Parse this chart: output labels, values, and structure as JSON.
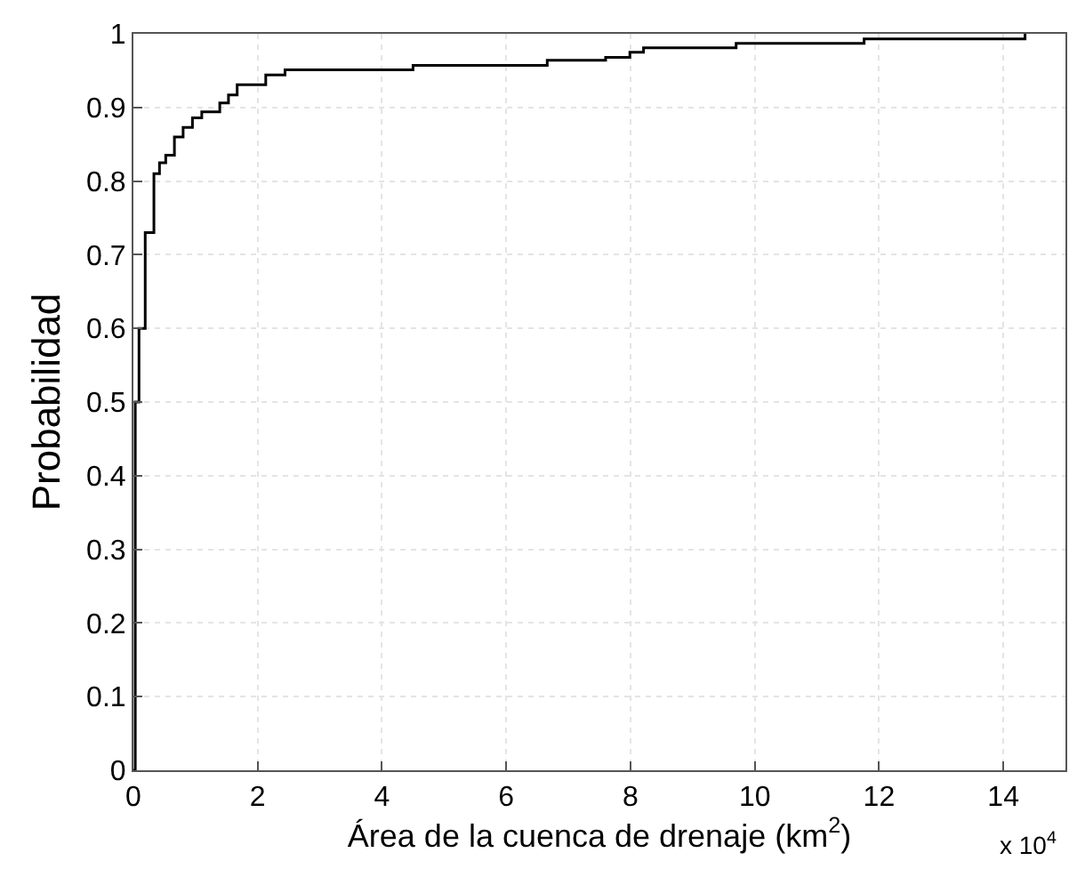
{
  "chart_data": {
    "type": "step",
    "xlabel": "Área de la cuenca de drenaje (km$^{2}$)",
    "ylabel": "Probabilidad",
    "annotations": [
      "x 10$^{4}$"
    ],
    "series": [
      {
        "color": "#000000",
        "x": [
          0,
          0.03,
          0.09,
          0.19,
          0.33,
          0.42,
          0.52,
          0.66,
          0.8,
          0.95,
          1.1,
          1.39,
          1.53,
          1.67,
          2.13,
          2.44,
          4.5,
          6.66,
          7.6,
          7.99,
          8.21,
          9.7,
          11.76,
          14.35
        ],
        "values": [
          0,
          0.5,
          0.6,
          0.73,
          0.81,
          0.825,
          0.835,
          0.86,
          0.873,
          0.886,
          0.894,
          0.906,
          0.917,
          0.931,
          0.944,
          0.951,
          0.957,
          0.964,
          0.968,
          0.975,
          0.981,
          0.987,
          0.993,
          1.0
        ]
      }
    ],
    "xlim": [
      0,
      15
    ],
    "xticks": [
      0,
      2,
      4,
      6,
      8,
      10,
      12,
      14
    ],
    "ylim": [
      0,
      1
    ],
    "yticks": [
      0,
      0.1,
      0.2,
      0.3,
      0.4,
      0.5,
      0.6,
      0.7,
      0.8,
      0.9,
      1
    ],
    "grid": true,
    "line_style": "solid",
    "marker": "none"
  }
}
